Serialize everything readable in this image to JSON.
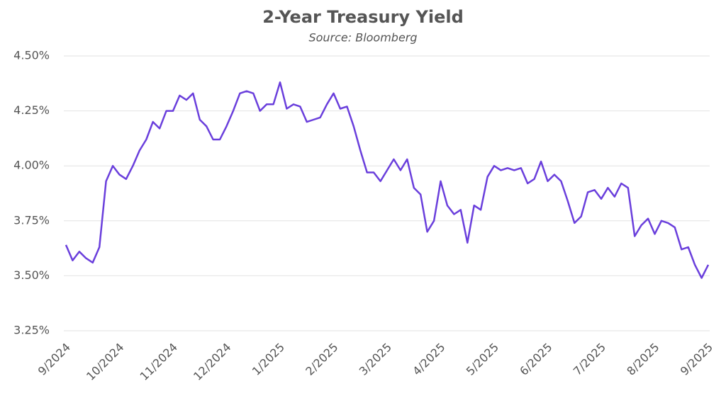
{
  "chart_data": {
    "type": "line",
    "title": "2-Year Treasury Yield",
    "subtitle": "Source: Bloomberg",
    "categories": [
      "9/2024",
      null,
      null,
      null,
      null,
      null,
      null,
      null,
      "10/2024",
      null,
      null,
      null,
      null,
      null,
      null,
      null,
      "11/2024",
      null,
      null,
      null,
      null,
      null,
      null,
      null,
      "12/2024",
      null,
      null,
      null,
      null,
      null,
      null,
      null,
      "1/2025",
      null,
      null,
      null,
      null,
      null,
      null,
      null,
      "2/2025",
      null,
      null,
      null,
      null,
      null,
      null,
      null,
      "3/2025",
      null,
      null,
      null,
      null,
      null,
      null,
      null,
      "4/2025",
      null,
      null,
      null,
      null,
      null,
      null,
      null,
      "5/2025",
      null,
      null,
      null,
      null,
      null,
      null,
      null,
      "6/2025",
      null,
      null,
      null,
      null,
      null,
      null,
      null,
      "7/2025",
      null,
      null,
      null,
      null,
      null,
      null,
      null,
      "8/2025",
      null,
      null,
      null,
      null,
      null,
      null,
      null,
      "9/2025"
    ],
    "values": [
      3.64,
      3.57,
      3.61,
      3.58,
      3.56,
      3.63,
      3.93,
      4.0,
      3.96,
      3.94,
      4.0,
      4.07,
      4.12,
      4.2,
      4.17,
      4.25,
      4.25,
      4.32,
      4.3,
      4.33,
      4.21,
      4.18,
      4.12,
      4.12,
      4.18,
      4.25,
      4.33,
      4.34,
      4.33,
      4.25,
      4.28,
      4.28,
      4.38,
      4.26,
      4.28,
      4.27,
      4.2,
      4.21,
      4.22,
      4.28,
      4.33,
      4.26,
      4.27,
      4.18,
      4.07,
      3.97,
      3.97,
      3.93,
      3.98,
      4.03,
      3.98,
      4.03,
      3.9,
      3.87,
      3.7,
      3.75,
      3.93,
      3.82,
      3.78,
      3.8,
      3.65,
      3.82,
      3.8,
      3.95,
      4.0,
      3.98,
      3.99,
      3.98,
      3.99,
      3.92,
      3.94,
      4.02,
      3.93,
      3.96,
      3.93,
      3.84,
      3.74,
      3.77,
      3.88,
      3.89,
      3.85,
      3.9,
      3.86,
      3.92,
      3.9,
      3.68,
      3.73,
      3.76,
      3.69,
      3.75,
      3.74,
      3.72,
      3.62,
      3.63,
      3.55,
      3.49,
      3.55
    ],
    "color": "#6a3fdc",
    "ylim": [
      3.25,
      4.5
    ],
    "yticks": [
      {
        "value": 3.25,
        "label": "3.25%"
      },
      {
        "value": 3.5,
        "label": "3.50%"
      },
      {
        "value": 3.75,
        "label": "3.75%"
      },
      {
        "value": 4.0,
        "label": "4.00%"
      },
      {
        "value": 4.25,
        "label": "4.25%"
      },
      {
        "value": 4.5,
        "label": "4.50%"
      }
    ],
    "grid": true
  }
}
